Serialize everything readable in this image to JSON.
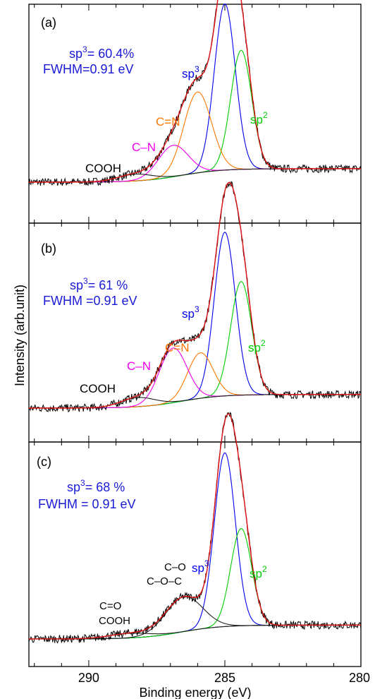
{
  "chart_data": {
    "type": "line",
    "xlabel": "Binding energy (eV)",
    "ylabel": "Intensity (arb.unit)",
    "xlim": [
      292.2,
      280
    ],
    "x_ticks": [
      290,
      285,
      280
    ],
    "colors": {
      "raw": "#000000",
      "envelope": "#dd1111",
      "sp3": "#0000ee",
      "sp2": "#00cc00",
      "CN_double": "#ff7700",
      "CN_single": "#ee00ee",
      "COOH": "#222222",
      "background": "#333333",
      "text_blue": "#1a1ad8"
    },
    "panels": [
      {
        "panel_label": "(a)",
        "annotation_line1_base": "sp",
        "annotation_line1_sup": "3",
        "annotation_line1_rest": "= 60.4%",
        "annotation_line2": "FWHM=0.91 eV",
        "series": [
          {
            "key": "sp3",
            "label_base": "sp",
            "label_sup": "3",
            "color": "#0000ee",
            "center": 285.0,
            "height": 0.74,
            "fwhm": 0.91
          },
          {
            "key": "sp2",
            "label_base": "sp",
            "label_sup": "2",
            "color": "#00cc00",
            "center": 284.4,
            "height": 0.53,
            "fwhm": 0.91
          },
          {
            "key": "CN_double",
            "label_base": "C=N",
            "label_sup": "",
            "color": "#ff7700",
            "center": 286.0,
            "height": 0.36,
            "fwhm": 1.2
          },
          {
            "key": "CN_single",
            "label_base": "C–N",
            "label_sup": "",
            "color": "#ee00ee",
            "center": 286.9,
            "height": 0.14,
            "fwhm": 1.3
          },
          {
            "key": "COOH",
            "label_base": "COOH",
            "label_sup": "",
            "color": "#222222",
            "center": 288.3,
            "height": 0.03,
            "fwhm": 1.5
          }
        ]
      },
      {
        "panel_label": "(b)",
        "annotation_line1_base": "sp",
        "annotation_line1_sup": "3",
        "annotation_line1_rest": "= 61 %",
        "annotation_line2": "FWHM =0.91 eV",
        "series": [
          {
            "key": "sp3",
            "label_base": "sp",
            "label_sup": "3",
            "color": "#0000ee",
            "center": 285.0,
            "height": 0.72,
            "fwhm": 0.91
          },
          {
            "key": "sp2",
            "label_base": "sp",
            "label_sup": "2",
            "color": "#00cc00",
            "center": 284.4,
            "height": 0.5,
            "fwhm": 0.91
          },
          {
            "key": "CN_double",
            "label_base": "C=N",
            "label_sup": "",
            "color": "#ff7700",
            "center": 285.9,
            "height": 0.2,
            "fwhm": 1.1
          },
          {
            "key": "CN_single",
            "label_base": "C–N",
            "label_sup": "",
            "color": "#ee00ee",
            "center": 286.9,
            "height": 0.24,
            "fwhm": 1.2
          },
          {
            "key": "COOH",
            "label_base": "COOH",
            "label_sup": "",
            "color": "#222222",
            "center": 288.2,
            "height": 0.04,
            "fwhm": 1.5
          }
        ]
      },
      {
        "panel_label": "(c)",
        "annotation_line1_base": "sp",
        "annotation_line1_sup": "3",
        "annotation_line1_rest": "= 68 %",
        "annotation_line2": "FWHM = 0.91 eV",
        "series": [
          {
            "key": "sp3",
            "label_base": "sp",
            "label_sup": "3",
            "color": "#0000ee",
            "center": 285.0,
            "height": 0.75,
            "fwhm": 0.91
          },
          {
            "key": "sp2",
            "label_base": "sp",
            "label_sup": "2",
            "color": "#00cc00",
            "center": 284.4,
            "height": 0.42,
            "fwhm": 0.91
          },
          {
            "key": "COC",
            "label_base": "C–O",
            "label_line2": "C–O–C",
            "label_sup": "",
            "color": "#222222",
            "center": 286.5,
            "height": 0.15,
            "fwhm": 1.6
          },
          {
            "key": "COOH",
            "label_base": "C=O",
            "label_line2": "COOH",
            "label_sup": "",
            "color": "#222222",
            "center": 288.5,
            "height": 0.02,
            "fwhm": 1.8
          }
        ]
      }
    ]
  }
}
